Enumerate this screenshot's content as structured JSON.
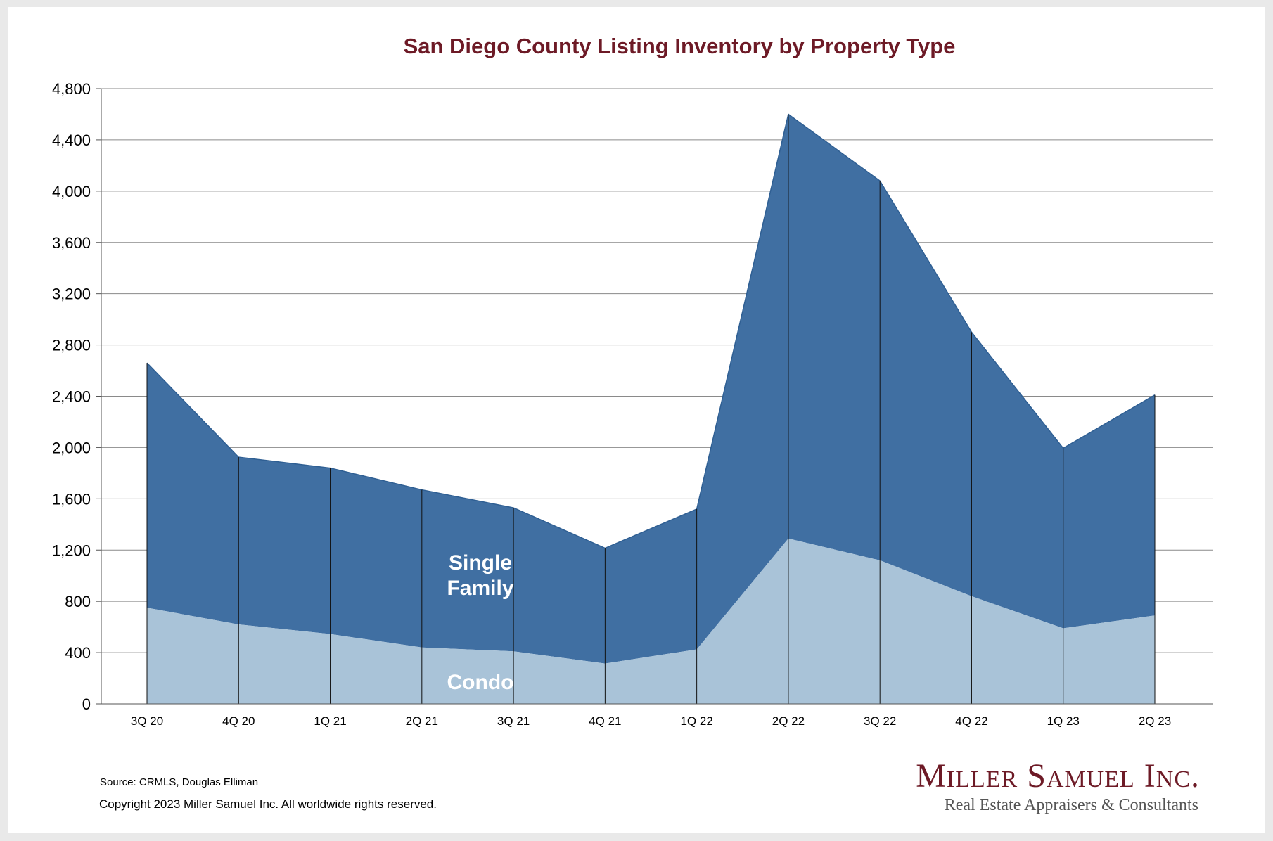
{
  "chart_data": {
    "type": "area",
    "stacked": true,
    "title": "San Diego County Listing Inventory by Property Type",
    "categories": [
      "3Q 20",
      "4Q 20",
      "1Q 21",
      "2Q 21",
      "3Q 21",
      "4Q 21",
      "1Q 22",
      "2Q 22",
      "3Q 22",
      "4Q 22",
      "1Q 23",
      "2Q 23"
    ],
    "series": [
      {
        "name": "Condo",
        "color": "#a9c3d8",
        "values": [
          750,
          620,
          545,
          440,
          410,
          315,
          425,
          1290,
          1120,
          840,
          590,
          690
        ]
      },
      {
        "name": "Single Family",
        "color": "#406fa2",
        "values": [
          1910,
          1305,
          1295,
          1230,
          1120,
          900,
          1095,
          3310,
          2960,
          2060,
          1405,
          1720
        ]
      }
    ],
    "ylim": [
      0,
      4800
    ],
    "yticks": [
      "0",
      "400",
      "800",
      "1,200",
      "1,600",
      "2,000",
      "2,400",
      "2,800",
      "3,200",
      "3,600",
      "4,000",
      "4,400",
      "4,800"
    ],
    "ytick_values": [
      0,
      400,
      800,
      1200,
      1600,
      2000,
      2400,
      2800,
      3200,
      3600,
      4000,
      4400,
      4800
    ],
    "grid": true,
    "labels": [
      {
        "text": "Single Family",
        "series": "Single Family"
      },
      {
        "text": "Condo",
        "series": "Condo"
      }
    ]
  },
  "footer": {
    "source": "Source: CRMLS, Douglas Elliman",
    "copyright": "Copyright 2023 Miller Samuel Inc.  All worldwide rights reserved."
  },
  "logo": {
    "name": "Miller Samuel Inc.",
    "tagline": "Real Estate Appraisers & Consultants"
  },
  "colors": {
    "title": "#6d1a26",
    "background": "#e9e9e9",
    "card": "#ffffff"
  }
}
